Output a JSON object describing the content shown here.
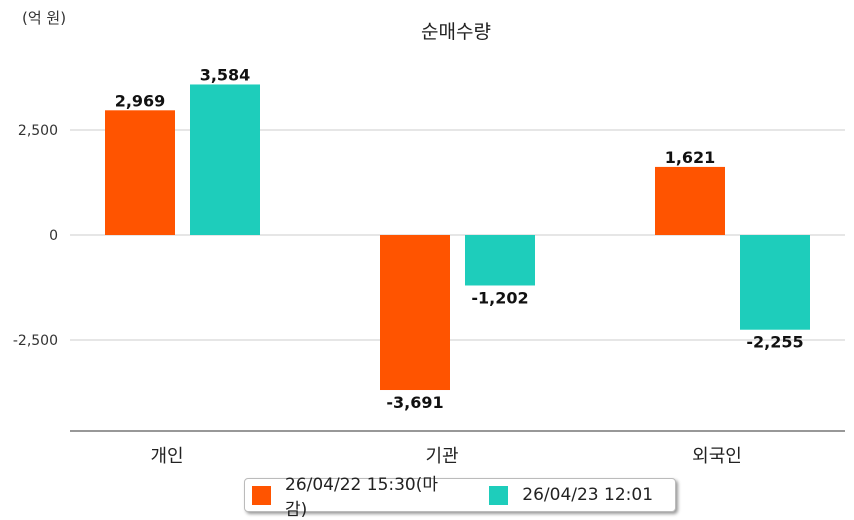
{
  "chart_data": {
    "type": "bar",
    "title": "순매수량",
    "ylabel": "(억 원)",
    "categories": [
      "개인",
      "기관",
      "외국인"
    ],
    "yticks": [
      2500,
      0,
      -2500
    ],
    "ytick_labels": [
      "2,500",
      "0",
      "-2,500"
    ],
    "ylim": [
      -4571,
      4500
    ],
    "grid": true,
    "legend_position": "bottom",
    "series": [
      {
        "name": "26/04/22 15:30(마감)",
        "color": "#ff5400",
        "values": [
          2969,
          -3691,
          1621
        ],
        "labels": [
          "2,969",
          "-3,691",
          "1,621"
        ]
      },
      {
        "name": "26/04/23 12:01",
        "color": "#1ecdbb",
        "values": [
          3584,
          -1202,
          -2255
        ],
        "labels": [
          "3,584",
          "-1,202",
          "-2,255"
        ]
      }
    ]
  }
}
